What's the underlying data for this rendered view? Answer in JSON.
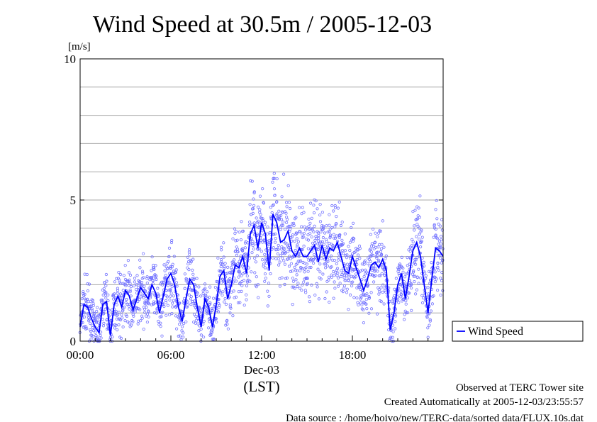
{
  "chart_data": {
    "type": "scatter",
    "title": "Wind Speed at 30.5m / 2005-12-03",
    "ylabel": "[m/s]",
    "xlabel": "(LST)",
    "x_date_label": "Dec-03",
    "x_ticks": [
      {
        "hour": 0,
        "label": "00:00"
      },
      {
        "hour": 6,
        "label": "06:00"
      },
      {
        "hour": 12,
        "label": "12:00"
      },
      {
        "hour": 18,
        "label": "18:00"
      }
    ],
    "y_ticks": [
      {
        "value": 0,
        "label": "0"
      },
      {
        "value": 5,
        "label": "5"
      },
      {
        "value": 10,
        "label": "10"
      }
    ],
    "ylim": [
      0,
      10
    ],
    "xlim_hours": [
      0,
      24
    ],
    "grid": true,
    "legend": {
      "placement": "right, outside plot, bottom",
      "entry": "Wind Speed"
    },
    "series": [
      {
        "name": "Wind Speed",
        "color": "#0000ff",
        "marker_color": "#7070ff",
        "note": "mean line (hours, m/s)",
        "x": [
          0.0,
          0.25,
          0.5,
          0.75,
          1.0,
          1.25,
          1.5,
          1.75,
          2.0,
          2.25,
          2.5,
          2.75,
          3.0,
          3.25,
          3.5,
          3.75,
          4.0,
          4.25,
          4.5,
          4.75,
          5.0,
          5.25,
          5.5,
          5.75,
          6.0,
          6.25,
          6.5,
          6.75,
          7.0,
          7.25,
          7.5,
          7.75,
          8.0,
          8.25,
          8.5,
          8.75,
          9.0,
          9.25,
          9.5,
          9.75,
          10.0,
          10.25,
          10.5,
          10.75,
          11.0,
          11.25,
          11.5,
          11.75,
          12.0,
          12.25,
          12.5,
          12.75,
          13.0,
          13.25,
          13.5,
          13.75,
          14.0,
          14.25,
          14.5,
          14.75,
          15.0,
          15.25,
          15.5,
          15.75,
          16.0,
          16.25,
          16.5,
          16.75,
          17.0,
          17.25,
          17.5,
          17.75,
          18.0,
          18.25,
          18.5,
          18.75,
          19.0,
          19.25,
          19.5,
          19.75,
          20.0,
          20.25,
          20.5,
          20.75,
          21.0,
          21.25,
          21.5,
          21.75,
          22.0,
          22.25,
          22.5,
          22.75,
          23.0,
          23.25,
          23.5,
          23.75,
          24.0
        ],
        "values": [
          0.5,
          1.3,
          1.2,
          0.8,
          0.5,
          0.3,
          1.3,
          1.4,
          0.2,
          1.3,
          1.6,
          1.2,
          1.8,
          1.6,
          1.1,
          1.5,
          1.9,
          1.7,
          1.5,
          2.0,
          1.7,
          1.0,
          1.6,
          2.2,
          2.4,
          2.0,
          1.2,
          0.7,
          1.5,
          2.2,
          2.0,
          1.2,
          0.5,
          1.5,
          1.2,
          0.5,
          1.3,
          2.3,
          2.5,
          1.5,
          2.0,
          2.7,
          2.6,
          3.0,
          2.4,
          3.8,
          4.1,
          3.3,
          4.2,
          3.8,
          2.5,
          4.5,
          4.2,
          3.5,
          3.6,
          3.9,
          3.2,
          3.0,
          3.3,
          3.0,
          3.0,
          3.2,
          3.4,
          2.8,
          3.4,
          2.9,
          3.3,
          3.2,
          3.5,
          3.0,
          2.5,
          2.4,
          3.0,
          2.6,
          2.2,
          1.8,
          2.2,
          2.7,
          2.8,
          2.6,
          2.9,
          2.5,
          0.4,
          1.0,
          2.0,
          2.4,
          1.5,
          2.3,
          3.2,
          3.5,
          3.0,
          2.0,
          1.0,
          2.2,
          3.3,
          3.2,
          3.0
        ]
      }
    ]
  },
  "footer": {
    "observed": "Observed at TERC Tower site",
    "created": "Created Automatically at 2005-12-03/23:55:57",
    "source": "Data source : /home/hoivo/new/TERC-data/sorted  data/FLUX.10s.dat"
  }
}
